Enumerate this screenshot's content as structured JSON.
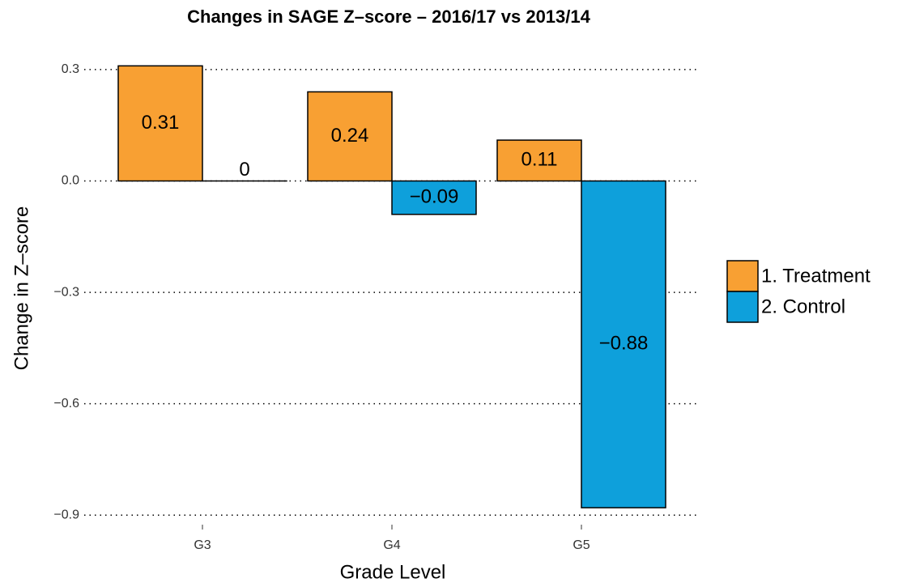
{
  "chart_data": {
    "type": "bar",
    "title": "Changes in SAGE Z–score – 2016/17 vs 2013/14",
    "x_label": "Grade Level",
    "y_label": "Change in Z–score",
    "categories": [
      "G3",
      "G4",
      "G5"
    ],
    "series": [
      {
        "name": "1. Treatment",
        "color": "#F8A033",
        "values": [
          0.31,
          0.24,
          0.11
        ],
        "value_labels": [
          "0.31",
          "0.24",
          "0.11"
        ]
      },
      {
        "name": "2. Control",
        "color": "#0EA0DB",
        "values": [
          0,
          -0.09,
          -0.88
        ],
        "value_labels": [
          "0",
          "−0.09",
          "−0.88"
        ]
      }
    ],
    "ylim": [
      -0.93,
      0.35
    ],
    "yticks": [
      0.3,
      {
        "value": 0,
        "label": "0.0"
      },
      {
        "value": -0.3,
        "label": "−0.3"
      },
      {
        "value": -0.6,
        "label": "−0.6"
      },
      {
        "value": -0.9,
        "label": "−0.9"
      }
    ],
    "grid": true,
    "legend": "right"
  }
}
